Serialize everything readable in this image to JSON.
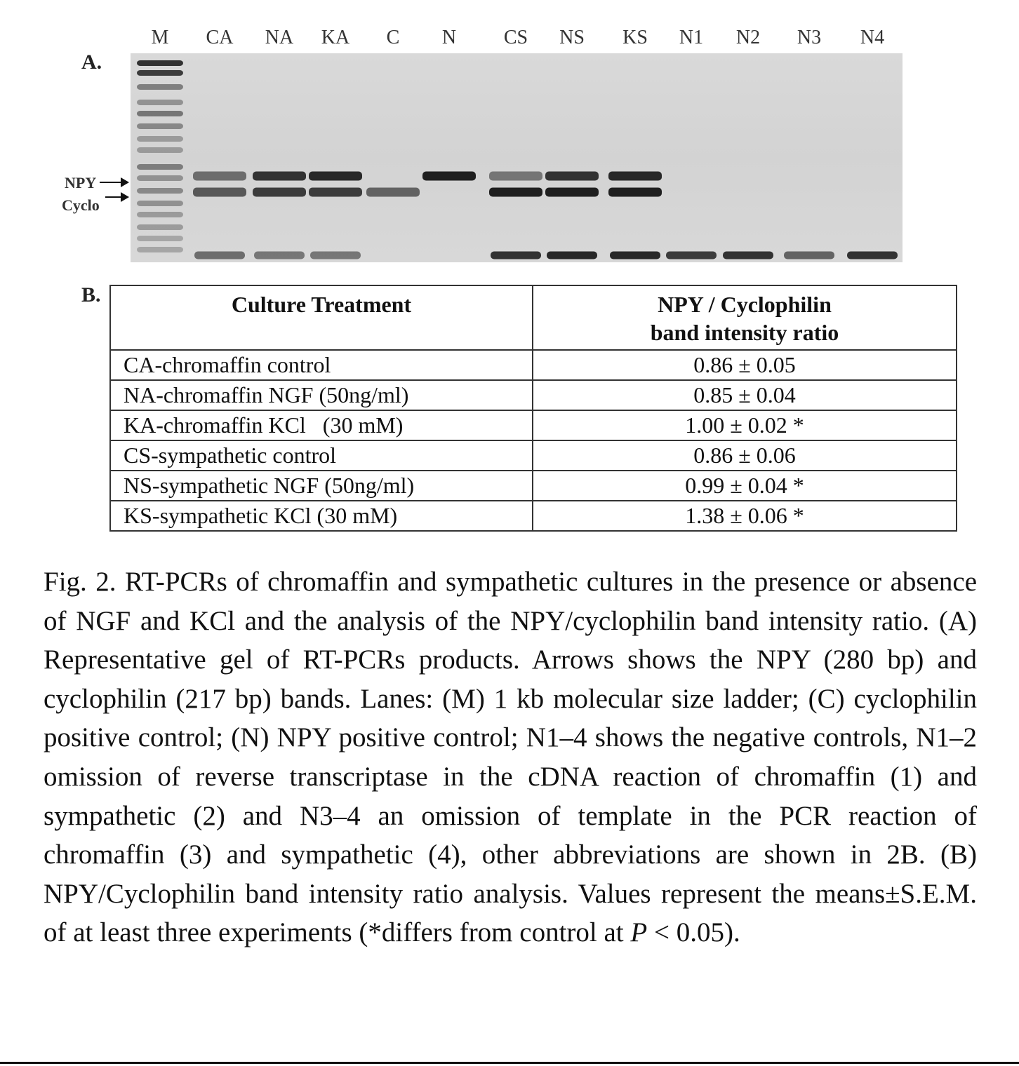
{
  "panel_a": {
    "letter": "A.",
    "lanes": [
      "M",
      "CA",
      "NA",
      "KA",
      "C",
      "N",
      "CS",
      "NS",
      "KS",
      "N1",
      "N2",
      "N3",
      "N4"
    ],
    "markers": {
      "npy": "NPY",
      "cyclo": "Cyclo"
    }
  },
  "panel_b": {
    "letter": "B.",
    "headers": {
      "treatment": "Culture Treatment",
      "ratio_line1": "NPY / Cyclophilin",
      "ratio_line2": "band intensity ratio"
    },
    "rows": [
      {
        "treatment": "CA-chromaffin control",
        "ratio": "0.86 ± 0.05"
      },
      {
        "treatment": "NA-chromaffin NGF (50ng/ml)",
        "ratio": "0.85 ± 0.04"
      },
      {
        "treatment": "KA-chromaffin KCl   (30 mM)",
        "ratio": "1.00 ± 0.02 *"
      },
      {
        "treatment": "CS-sympathetic control",
        "ratio": "0.86 ± 0.06"
      },
      {
        "treatment": "NS-sympathetic NGF (50ng/ml)",
        "ratio": "0.99 ± 0.04 *"
      },
      {
        "treatment": "KS-sympathetic KCl (30 mM)",
        "ratio": "1.38 ± 0.06 *"
      }
    ]
  },
  "caption": {
    "text": "Fig. 2. RT-PCRs of chromaffin and sympathetic cultures in the presence or absence of NGF and KCl and the analysis of the NPY/cyclophilin band intensity ratio. (A) Representative gel of RT-PCRs products. Arrows shows the NPY (280 bp) and cyclophilin (217 bp) bands. Lanes: (M) 1 kb molecular size ladder; (C) cyclophilin positive control; (N) NPY positive control; N1–4 shows the negative controls, N1–2 omission of reverse transcriptase in the cDNA reaction of chromaffin (1) and sympathetic (2) and N3–4 an omission of template in the PCR reaction of chromaffin (3) and sympathetic (4), other abbreviations are shown in 2B. (B) NPY/Cyclophilin band intensity ratio analysis. Values represent the means±S.E.M. of at least three experiments (*differs from control at",
    "italic_p": "P",
    "tail": " < 0.05)."
  },
  "gel_bands": {
    "npy_intensity": [
      0.55,
      0.85,
      0.9,
      0,
      0.95,
      0.5,
      0.85,
      0.9,
      0,
      0,
      0,
      0
    ],
    "cyclo_intensity": [
      0.65,
      0.8,
      0.8,
      0.6,
      0,
      0.95,
      0.95,
      0.95,
      0,
      0,
      0,
      0
    ],
    "primer_intensity": [
      0.55,
      0.5,
      0.5,
      0,
      0,
      0.85,
      0.9,
      0.9,
      0.8,
      0.85,
      0.6,
      0.85
    ]
  }
}
